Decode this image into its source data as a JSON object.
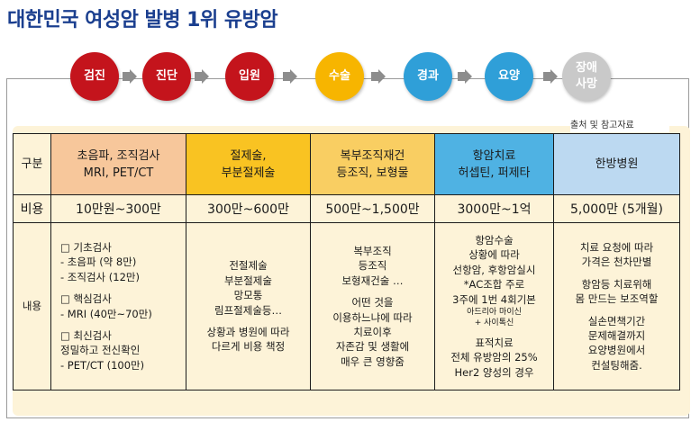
{
  "title": "대한민국 여성암 발병 1위 유방암",
  "steps": [
    {
      "label": "검진",
      "color": "#c4141c"
    },
    {
      "label": "진단",
      "color": "#c4141c"
    },
    {
      "label": "입원",
      "color": "#c4141c"
    },
    {
      "label": "수술",
      "color": "#f7b500"
    },
    {
      "label": "경과",
      "color": "#2f9fd8"
    },
    {
      "label": "요양",
      "color": "#2f9fd8"
    },
    {
      "label": "장애\n사망",
      "color": "#c9c9c9"
    }
  ],
  "note": "출처 및 참고자료",
  "table": {
    "header": {
      "label": "구분",
      "cols": [
        "초음파, 조직검사\nMRI, PET/CT",
        "절제술,\n부분절제술",
        "복부조직재건\n등조직, 보형물",
        "항암치료\n허셉틴, 퍼제타",
        "한방병원"
      ]
    },
    "cost": {
      "label": "비용",
      "cols": [
        "10만원~300만",
        "300만~600만",
        "500만~1,500만",
        "3000만~1억",
        "5,000만 (5개월)"
      ]
    },
    "content": {
      "label": "내용",
      "col1": [
        "□ 기초검사",
        "- 초음파 (약 8만)",
        " - 조직검사 (12만)",
        "",
        "□ 핵심검사",
        "- MRI (40만~70만)",
        "",
        "□ 최신검사",
        " 정밀하고 전신확인",
        "- PET/CT (100만)"
      ],
      "col2": [
        "전절제술",
        "부분절제술",
        "망모통",
        "림프절제술등…",
        "",
        "상황과 병원에 따라",
        "다르게 비용 책정"
      ],
      "col3": [
        "복부조직",
        "등조직",
        "보형재건술 …",
        "",
        "어떤 것을",
        "이용하느냐에 따라",
        "치료이후",
        "자존감 및 생활에",
        "매우 큰 영향줌"
      ],
      "col4": [
        "항암수술",
        "상황에 따라",
        "선항암, 후항암실시",
        "*AC조합 주로",
        "3주에 1번 4회기본",
        "아드리아 마이신",
        "+ 사이톡신",
        "",
        "표적치료",
        "전체 유방암의 25%",
        "Her2 양성의 경우"
      ],
      "col5": [
        "치료 요청에 따라",
        "가격은 천차만별",
        "",
        "항암등 치료위해",
        "몸 만드는 보조역할",
        "",
        "실손면책기간",
        "문제해결까지",
        "요양병원에서",
        "컨설팅해줌."
      ]
    }
  }
}
